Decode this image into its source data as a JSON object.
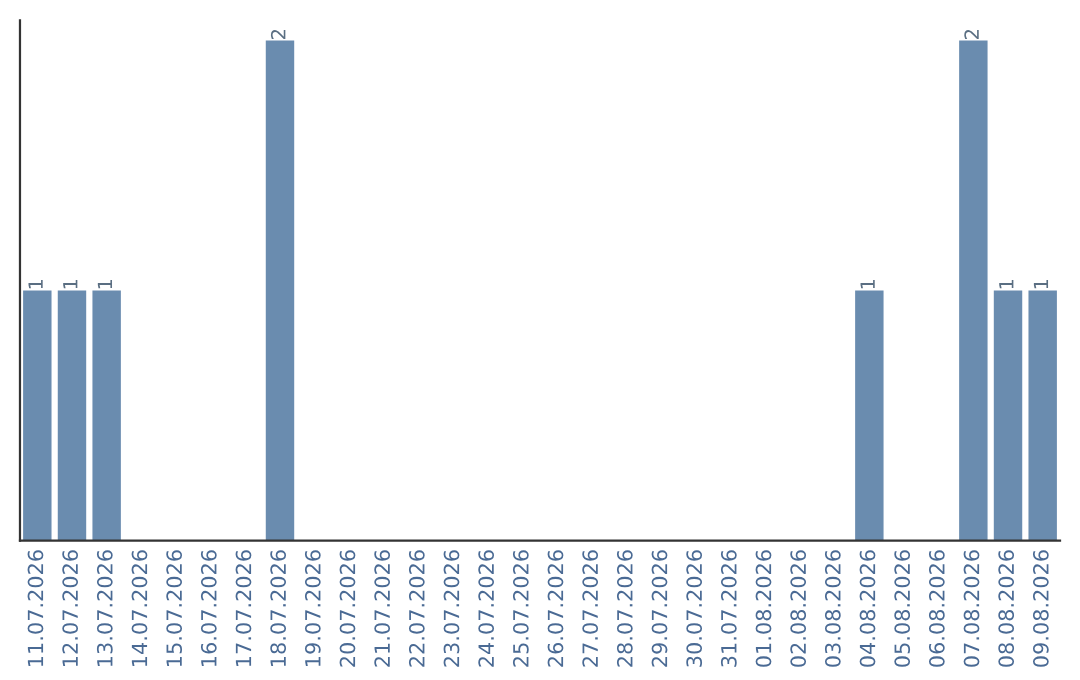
{
  "chart_data": {
    "type": "bar",
    "categories": [
      "11.07.2026",
      "12.07.2026",
      "13.07.2026",
      "14.07.2026",
      "15.07.2026",
      "16.07.2026",
      "17.07.2026",
      "18.07.2026",
      "19.07.2026",
      "20.07.2026",
      "21.07.2026",
      "22.07.2026",
      "23.07.2026",
      "24.07.2026",
      "25.07.2026",
      "26.07.2026",
      "27.07.2026",
      "28.07.2026",
      "29.07.2026",
      "30.07.2026",
      "31.07.2026",
      "01.08.2026",
      "02.08.2026",
      "03.08.2026",
      "04.08.2026",
      "05.08.2026",
      "06.08.2026",
      "07.08.2026",
      "08.08.2026",
      "09.08.2026"
    ],
    "values": [
      1,
      1,
      1,
      0,
      0,
      0,
      0,
      2,
      0,
      0,
      0,
      0,
      0,
      0,
      0,
      0,
      0,
      0,
      0,
      0,
      0,
      0,
      0,
      0,
      1,
      0,
      0,
      2,
      1,
      1
    ],
    "value_labels": [
      "1",
      "1",
      "1",
      null,
      null,
      null,
      null,
      "2",
      null,
      null,
      null,
      null,
      null,
      null,
      null,
      null,
      null,
      null,
      null,
      null,
      null,
      null,
      null,
      null,
      "1",
      null,
      null,
      "2",
      "1",
      "1"
    ],
    "color": "#6a8caf",
    "grid": false,
    "tick_labels": "x"
  }
}
